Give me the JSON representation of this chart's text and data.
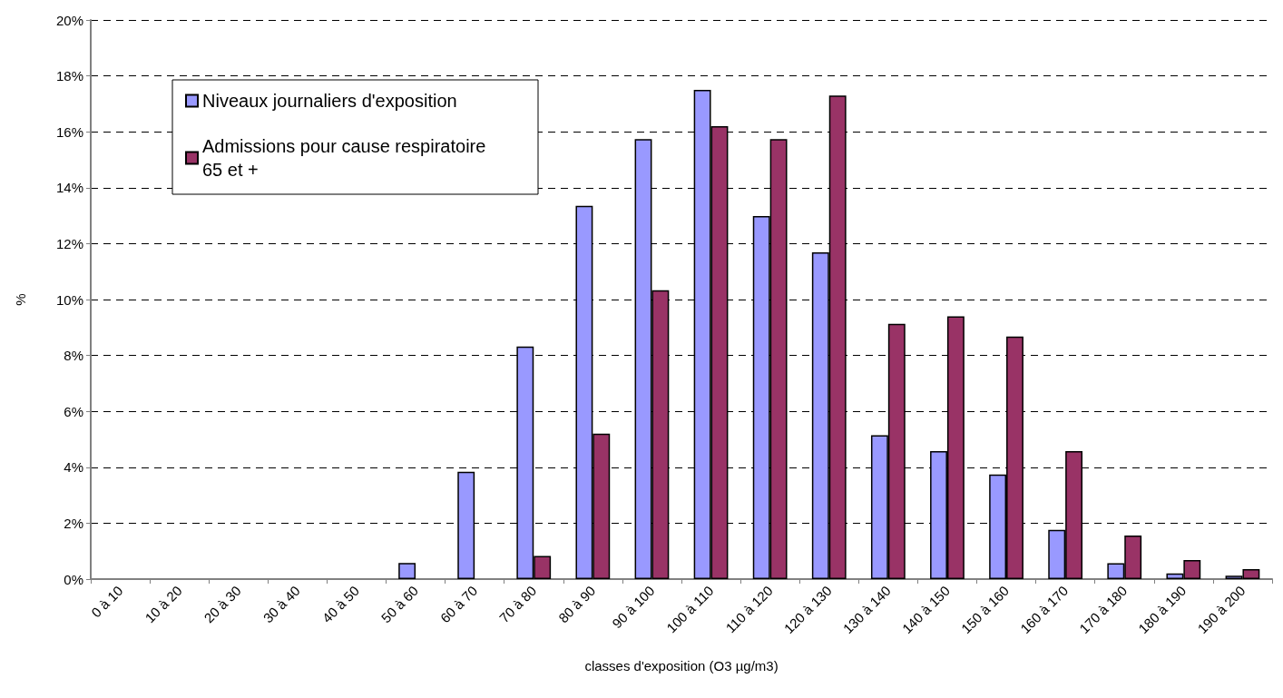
{
  "chart_data": {
    "type": "bar",
    "xlabel": "classes d'exposition (O3 µg/m3)",
    "ylabel": "%",
    "categories": [
      "0 à 10",
      "10 à 20",
      "20 à 30",
      "30 à 40",
      "40 à 50",
      "50 à 60",
      "60 à 70",
      "70 à 80",
      "80 à 90",
      "90 à 100",
      "100 à 110",
      "110 à 120",
      "120 à 130",
      "130 à 140",
      "140 à 150",
      "150 à 160",
      "160 à 170",
      "170 à 180",
      "180 à 190",
      "190 à 200"
    ],
    "series": [
      {
        "name": "Niveaux journaliers d'exposition",
        "color": "#9999ff",
        "values": [
          null,
          null,
          null,
          null,
          null,
          0.58,
          3.84,
          8.32,
          13.35,
          15.74,
          17.5,
          12.99,
          11.69,
          5.15,
          4.58,
          3.74,
          1.76,
          0.57,
          0.2,
          0.12
        ]
      },
      {
        "name": "Admissions pour cause respiratoire 65 et +",
        "color": "#993366",
        "values": [
          null,
          null,
          null,
          null,
          null,
          null,
          null,
          0.83,
          5.2,
          10.33,
          16.2,
          15.74,
          17.3,
          9.13,
          9.4,
          8.68,
          4.58,
          1.56,
          0.68,
          0.36
        ]
      }
    ],
    "ylim": [
      0,
      20
    ],
    "yticks": [
      {
        "value": 0,
        "label": "0%"
      },
      {
        "value": 2,
        "label": "2%"
      },
      {
        "value": 4,
        "label": "4%"
      },
      {
        "value": 6,
        "label": "6%"
      },
      {
        "value": 8,
        "label": "8%"
      },
      {
        "value": 10,
        "label": "10%"
      },
      {
        "value": 12,
        "label": "12%"
      },
      {
        "value": 14,
        "label": "14%"
      },
      {
        "value": 16,
        "label": "16%"
      },
      {
        "value": 18,
        "label": "18%"
      },
      {
        "value": 20,
        "label": "20%"
      }
    ],
    "grid": "y",
    "legend": "top left"
  }
}
